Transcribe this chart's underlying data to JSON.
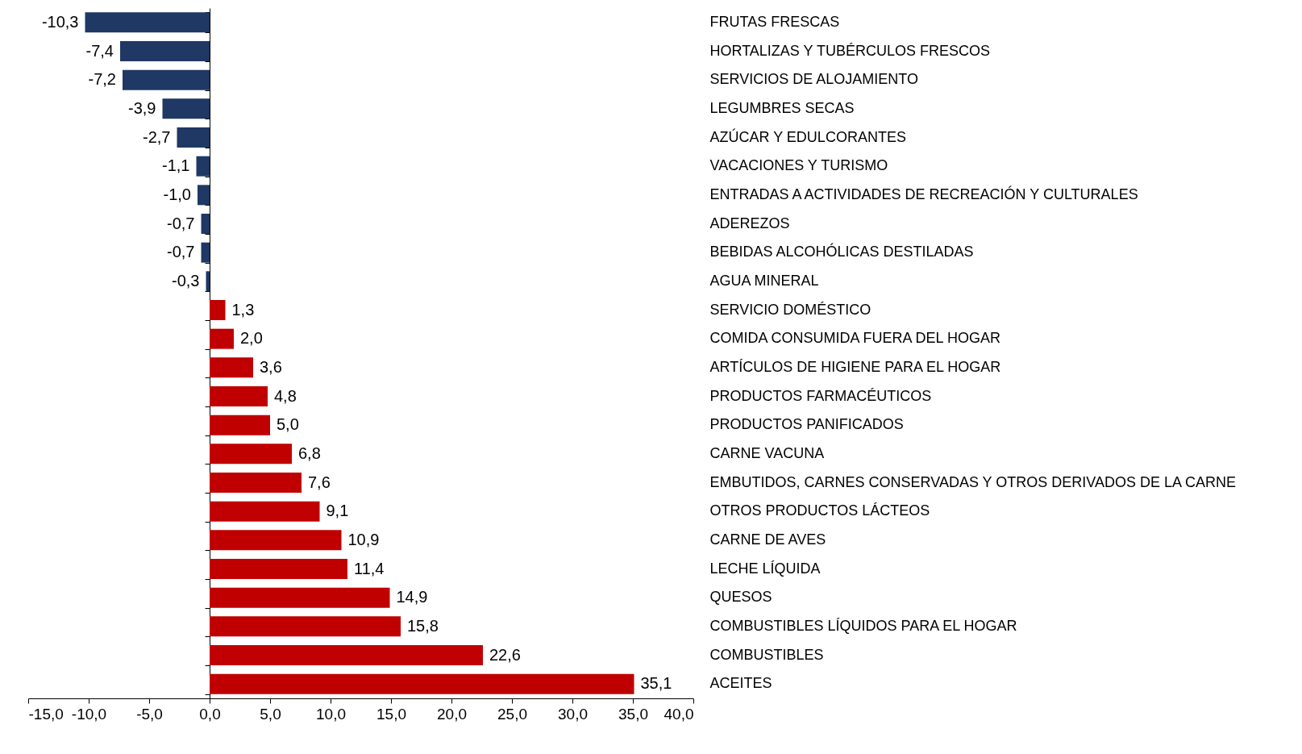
{
  "chart_data": {
    "type": "bar",
    "orientation": "horizontal",
    "categories": [
      "FRUTAS FRESCAS",
      "HORTALIZAS Y TUBÉRCULOS FRESCOS",
      "SERVICIOS DE ALOJAMIENTO",
      "LEGUMBRES SECAS",
      "AZÚCAR Y EDULCORANTES",
      "VACACIONES Y TURISMO",
      "ENTRADAS A ACTIVIDADES DE RECREACIÓN Y CULTURALES",
      "ADEREZOS",
      "BEBIDAS ALCOHÓLICAS DESTILADAS",
      "AGUA MINERAL",
      "SERVICIO DOMÉSTICO",
      "COMIDA CONSUMIDA FUERA DEL HOGAR",
      "ARTÍCULOS DE HIGIENE PARA EL HOGAR",
      "PRODUCTOS FARMACÉUTICOS",
      "PRODUCTOS PANIFICADOS",
      "CARNE VACUNA",
      "EMBUTIDOS, CARNES CONSERVADAS Y OTROS DERIVADOS DE LA CARNE",
      "OTROS PRODUCTOS LÁCTEOS",
      "CARNE DE AVES",
      "LECHE LÍQUIDA",
      "QUESOS",
      "COMBUSTIBLES LÍQUIDOS PARA EL HOGAR",
      "COMBUSTIBLES",
      "ACEITES"
    ],
    "values": [
      -10.3,
      -7.4,
      -7.2,
      -3.9,
      -2.7,
      -1.1,
      -1.0,
      -0.7,
      -0.7,
      -0.3,
      1.3,
      2.0,
      3.6,
      4.8,
      5.0,
      6.8,
      7.6,
      9.1,
      10.9,
      11.4,
      14.9,
      15.8,
      22.6,
      35.1
    ],
    "value_labels": [
      "-10,3",
      "-7,4",
      "-7,2",
      "-3,9",
      "-2,7",
      "-1,1",
      "-1,0",
      "-0,7",
      "-0,7",
      "-0,3",
      "1,3",
      "2,0",
      "3,6",
      "4,8",
      "5,0",
      "6,8",
      "7,6",
      "9,1",
      "10,9",
      "11,4",
      "14,9",
      "15,8",
      "22,6",
      "35,1"
    ],
    "colors": [
      "#1f3864",
      "#1f3864",
      "#1f3864",
      "#1f3864",
      "#1f3864",
      "#1f3864",
      "#1f3864",
      "#1f3864",
      "#1f3864",
      "#1f3864",
      "#c00000",
      "#c00000",
      "#c00000",
      "#c00000",
      "#c00000",
      "#c00000",
      "#c00000",
      "#c00000",
      "#c00000",
      "#c00000",
      "#c00000",
      "#c00000",
      "#c00000",
      "#c00000"
    ],
    "xlim": [
      -15,
      40
    ],
    "xticks": [
      {
        "value": -15,
        "label": "-15,0"
      },
      {
        "value": -10,
        "label": "-10,0"
      },
      {
        "value": -5,
        "label": "-5,0"
      },
      {
        "value": 0,
        "label": "0,0"
      },
      {
        "value": 5,
        "label": "5,0"
      },
      {
        "value": 10,
        "label": "10,0"
      },
      {
        "value": 15,
        "label": "15,0"
      },
      {
        "value": 20,
        "label": "20,0"
      },
      {
        "value": 25,
        "label": "25,0"
      },
      {
        "value": 30,
        "label": "30,0"
      },
      {
        "value": 35,
        "label": "35,0"
      },
      {
        "value": 40,
        "label": "40,0"
      }
    ]
  }
}
